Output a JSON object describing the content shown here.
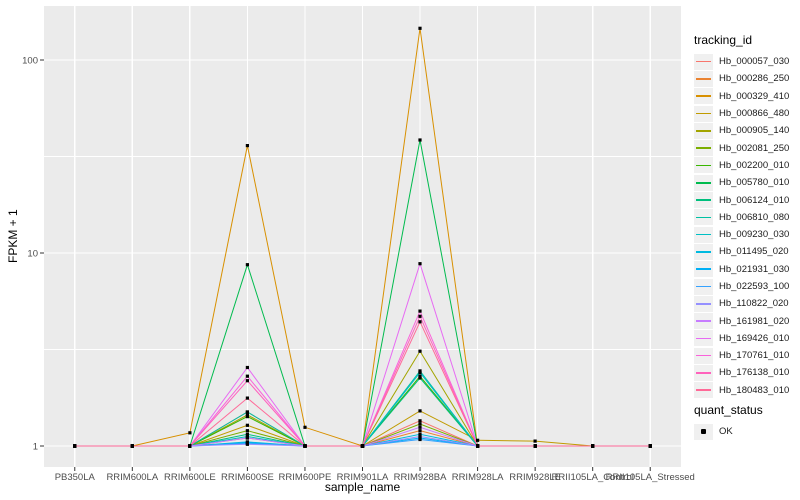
{
  "figure": {
    "colors": {
      "panel_bg": "#EBEBEB",
      "grid": "#FFFFFF",
      "tick_label": "#4D4D4D",
      "tick_mark": "#333333",
      "point": "#000000",
      "key_bg": "#F0F0F0"
    },
    "legends": [
      {
        "title": "tracking_id",
        "type": "line",
        "source": "series"
      },
      {
        "title": "quant_status",
        "type": "point",
        "entries": [
          {
            "label": "OK",
            "color": "#000000"
          }
        ]
      }
    ]
  },
  "chart_data": {
    "type": "line",
    "title": "",
    "xlabel": "sample_name",
    "ylabel": "FPKM + 1",
    "y_scale": "log10",
    "ylim": [
      1,
      188
    ],
    "y_ticks": [
      1,
      10,
      100
    ],
    "y_tick_labels": [
      "1",
      "10",
      "100"
    ],
    "y_minor_ticks": [
      3.162,
      31.62
    ],
    "grid": true,
    "legend_position": "right",
    "point_marker": {
      "shape": "square",
      "color": "#000000",
      "label": "OK"
    },
    "categories": [
      "PB350LA",
      "RRIM600LA",
      "RRIM600LE",
      "RRIM600SE",
      "RRIM600PE",
      "RRIM901LA",
      "RRIM928BA",
      "RRIM928LA",
      "RRIM928LE",
      "RRII105LA_Control",
      "RRII105LA_Stressed"
    ],
    "series": [
      {
        "name": "Hb_000057_030",
        "color": "#F8766D",
        "values": [
          1,
          1,
          1,
          1.5,
          1,
          1,
          1.35,
          1,
          1,
          1,
          1
        ]
      },
      {
        "name": "Hb_000286_250",
        "color": "#EA8331",
        "values": [
          1,
          1,
          1,
          1.1,
          1,
          1,
          1.2,
          1,
          1,
          1,
          1
        ]
      },
      {
        "name": "Hb_000329_410",
        "color": "#D89000",
        "values": [
          1,
          1,
          1.17,
          36,
          1.25,
          1,
          146,
          1,
          1,
          1,
          1
        ]
      },
      {
        "name": "Hb_000866_480",
        "color": "#C09B00",
        "values": [
          1,
          1,
          1,
          1.28,
          1,
          1,
          1.52,
          1.07,
          1.06,
          1,
          1
        ]
      },
      {
        "name": "Hb_000905_140",
        "color": "#A3A500",
        "values": [
          1,
          1,
          1,
          1.45,
          1,
          1,
          3.1,
          1,
          1,
          1,
          1
        ]
      },
      {
        "name": "Hb_002081_250",
        "color": "#7CAE00",
        "values": [
          1,
          1,
          1,
          1.2,
          1,
          1,
          1.3,
          1,
          1,
          1,
          1
        ]
      },
      {
        "name": "Hb_002200_010",
        "color": "#39B600",
        "values": [
          1,
          1,
          1,
          1.42,
          1,
          1,
          2.3,
          1,
          1,
          1,
          1
        ]
      },
      {
        "name": "Hb_005780_010",
        "color": "#00BB4E",
        "values": [
          1,
          1,
          1,
          8.7,
          1,
          1,
          38.5,
          1,
          1,
          1,
          1
        ]
      },
      {
        "name": "Hb_006124_010",
        "color": "#00BF7D",
        "values": [
          1,
          1,
          1,
          1.15,
          1,
          1,
          2.25,
          1,
          1,
          1,
          1
        ]
      },
      {
        "name": "Hb_006810_080",
        "color": "#00C1A3",
        "values": [
          1,
          1,
          1,
          1.5,
          1,
          1,
          2.45,
          1,
          1,
          1,
          1
        ]
      },
      {
        "name": "Hb_009230_030",
        "color": "#00BFC4",
        "values": [
          1,
          1,
          1,
          1.12,
          1,
          1,
          2.4,
          1,
          1,
          1,
          1
        ]
      },
      {
        "name": "Hb_011495_020",
        "color": "#00BAE0",
        "values": [
          1,
          1,
          1,
          1.05,
          1,
          1,
          1.15,
          1,
          1,
          1,
          1
        ]
      },
      {
        "name": "Hb_021931_030",
        "color": "#00B0F6",
        "values": [
          1,
          1,
          1,
          1.04,
          1,
          1,
          1.1,
          1,
          1,
          1,
          1
        ]
      },
      {
        "name": "Hb_022593_100",
        "color": "#35A2FF",
        "values": [
          1,
          1,
          1,
          1.03,
          1,
          1,
          1.08,
          1,
          1,
          1,
          1
        ]
      },
      {
        "name": "Hb_110822_020",
        "color": "#9590FF",
        "values": [
          1,
          1,
          1,
          1.02,
          1,
          1,
          1.12,
          1,
          1,
          1,
          1
        ]
      },
      {
        "name": "Hb_161981_020",
        "color": "#C77CFF",
        "values": [
          1,
          1,
          1,
          1.1,
          1,
          1,
          1.25,
          1,
          1,
          1,
          1
        ]
      },
      {
        "name": "Hb_169426_010",
        "color": "#E76BF3",
        "values": [
          1,
          1,
          1,
          2.55,
          1,
          1,
          8.8,
          1,
          1,
          1,
          1
        ]
      },
      {
        "name": "Hb_170761_010",
        "color": "#FA62DB",
        "values": [
          1,
          1,
          1,
          2.3,
          1,
          1,
          5.0,
          1,
          1,
          1,
          1
        ]
      },
      {
        "name": "Hb_176138_010",
        "color": "#FF62BC",
        "values": [
          1,
          1,
          1,
          2.18,
          1,
          1,
          4.7,
          1,
          1,
          1,
          1
        ]
      },
      {
        "name": "Hb_180483_010",
        "color": "#FF6A98",
        "values": [
          1,
          1,
          1,
          1.77,
          1,
          1,
          4.4,
          1,
          1,
          1,
          1
        ]
      }
    ]
  }
}
